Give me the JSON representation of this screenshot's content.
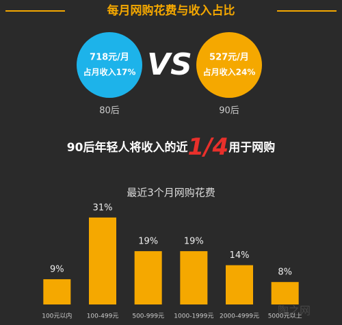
{
  "title": "每月网购花费与收入占比",
  "comparison": {
    "left": {
      "amount": "718元/月",
      "share": "占月收入17%",
      "label": "80后"
    },
    "vs": "VS",
    "right": {
      "amount": "527元/月",
      "share": "占月收入24%",
      "label": "90后"
    }
  },
  "statement": {
    "before": "90后年轻人将收入的近",
    "highlight": "1/4",
    "after": "用于网购"
  },
  "watermark": "陶之网",
  "chart_data": {
    "type": "bar",
    "title": "最近3个月网购花费",
    "categories": [
      "100元以内",
      "100-499元",
      "500-999元",
      "1000-1999元",
      "2000-4999元",
      "5000元以上"
    ],
    "values": [
      9,
      31,
      19,
      19,
      14,
      8
    ],
    "value_labels": [
      "9%",
      "31%",
      "19%",
      "19%",
      "14%",
      "8%"
    ],
    "color": "#f5a800"
  }
}
